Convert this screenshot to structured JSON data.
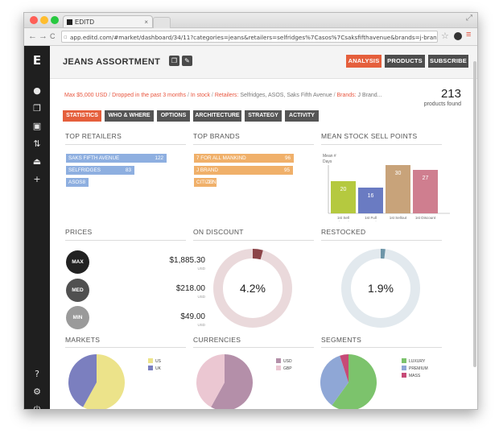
{
  "browser": {
    "tab_title": "EDITD",
    "url": "app.editd.com/#market/dashboard/34/11?categories=jeans&retailers=selfridges%7Casos%7Csaksfifthavenue&brands=j-brand%7C7-mankind%...",
    "nav": {
      "back": "←",
      "forward": "→",
      "reload": "C"
    }
  },
  "sidebar": {
    "logo": "E",
    "items": [
      {
        "name": "home-icon",
        "glyph": "●"
      },
      {
        "name": "copy-icon",
        "glyph": "❐"
      },
      {
        "name": "image-icon",
        "glyph": "▣"
      },
      {
        "name": "sort-icon",
        "glyph": "⇅"
      },
      {
        "name": "hanger-icon",
        "glyph": "⏏"
      },
      {
        "name": "plus-icon",
        "glyph": "+"
      }
    ],
    "bottom": [
      {
        "name": "help-icon",
        "glyph": "?"
      },
      {
        "name": "settings-icon",
        "glyph": "⚙"
      },
      {
        "name": "power-icon",
        "glyph": "⏻"
      }
    ]
  },
  "header": {
    "title": "JEANS ASSORTMENT",
    "buttons": {
      "analysis": "ANALYSIS",
      "products": "PRODUCTS",
      "subscribe": "SUBSCRIBE"
    }
  },
  "filters": {
    "price": "Max $5,000 USD",
    "dropped": "Dropped in the past 3 months",
    "stock": "In stock",
    "retailers_label": "Retailers:",
    "retailers_value": "Selfridges, ASOS, Saks Fifth Avenue",
    "brands_label": "Brands:",
    "brands_value": "J Brand..."
  },
  "summary": {
    "count": "213",
    "count_label": "products found"
  },
  "page_tabs": [
    "STATISTICS",
    "WHO & WHERE",
    "OPTIONS",
    "ARCHITECTURE",
    "STRATEGY",
    "ACTIVITY"
  ],
  "sections": {
    "top_retailers": "TOP RETAILERS",
    "top_brands": "TOP BRANDS",
    "mean_stock": "MEAN STOCK SELL POINTS",
    "prices": "PRICES",
    "on_discount": "ON DISCOUNT",
    "restocked": "RESTOCKED",
    "markets": "MARKETS",
    "currencies": "CURRENCIES",
    "segments": "SEGMENTS"
  },
  "top_retailers": [
    {
      "label": "SAKS FIFTH AVENUE",
      "value": "122",
      "n": 122
    },
    {
      "label": "SELFRIDGES",
      "value": "83",
      "n": 83
    },
    {
      "label": "ASOS",
      "value": "8",
      "n": 8
    }
  ],
  "top_brands": [
    {
      "label": "7 FOR ALL MANKIND",
      "value": "96",
      "n": 96
    },
    {
      "label": "J BRAND",
      "value": "95",
      "n": 95
    },
    {
      "label": "CITIZENS ...",
      "value": "22",
      "n": 22
    }
  ],
  "mean_stock": {
    "ylabel": "Mean # Days",
    "bars": [
      {
        "label": "1st Sell Through",
        "value": 20,
        "color": "#b5c93f"
      },
      {
        "label": "1st Full Restock",
        "value": 16,
        "color": "#6a7bc2"
      },
      {
        "label": "1st Sellout",
        "value": 30,
        "color": "#c8a37a"
      },
      {
        "label": "1st Discount",
        "value": 27,
        "color": "#cf7e8f"
      }
    ]
  },
  "prices": [
    {
      "label": "MAX",
      "value": "$1,885.30",
      "unit": "USD",
      "color": "#222222"
    },
    {
      "label": "MED",
      "value": "$218.00",
      "unit": "USD",
      "color": "#505050"
    },
    {
      "label": "MIN",
      "value": "$49.00",
      "unit": "USD",
      "color": "#9a9a9a"
    }
  ],
  "on_discount": {
    "value": "4.2%",
    "fraction": 0.042,
    "color": "#8b4448",
    "track": "#ead9db"
  },
  "restocked": {
    "value": "1.9%",
    "fraction": 0.019,
    "color": "#6d95a8",
    "track": "#e2e9ee"
  },
  "chart_data": [
    {
      "type": "bar",
      "title": "TOP RETAILERS",
      "categories": [
        "SAKS FIFTH AVENUE",
        "SELFRIDGES",
        "ASOS"
      ],
      "values": [
        122,
        83,
        8
      ]
    },
    {
      "type": "bar",
      "title": "TOP BRANDS",
      "categories": [
        "7 FOR ALL MANKIND",
        "J BRAND",
        "CITIZENS ..."
      ],
      "values": [
        96,
        95,
        22
      ]
    },
    {
      "type": "bar",
      "title": "MEAN STOCK SELL POINTS",
      "ylabel": "Mean # Days",
      "categories": [
        "1st Sell Through",
        "1st Full Restock",
        "1st Sellout",
        "1st Discount"
      ],
      "values": [
        20,
        16,
        30,
        27
      ]
    },
    {
      "type": "pie",
      "title": "ON DISCOUNT",
      "categories": [
        "On discount",
        "Other"
      ],
      "values": [
        4.2,
        95.8
      ]
    },
    {
      "type": "pie",
      "title": "RESTOCKED",
      "categories": [
        "Restocked",
        "Other"
      ],
      "values": [
        1.9,
        98.1
      ]
    },
    {
      "type": "pie",
      "title": "MARKETS",
      "categories": [
        "US",
        "UK"
      ],
      "values": [
        58,
        42
      ]
    },
    {
      "type": "pie",
      "title": "CURRENCIES",
      "categories": [
        "USD",
        "GBP"
      ],
      "values": [
        58,
        42
      ]
    },
    {
      "type": "pie",
      "title": "SEGMENTS",
      "categories": [
        "LUXURY",
        "PREMIUM",
        "MASS"
      ],
      "values": [
        60,
        35,
        5
      ]
    }
  ],
  "pies": {
    "markets": [
      {
        "label": "US",
        "value": 58,
        "color": "#ece38a"
      },
      {
        "label": "UK",
        "value": 42,
        "color": "#7b7fbf"
      }
    ],
    "currencies": [
      {
        "label": "USD",
        "value": 58,
        "color": "#b48fa9"
      },
      {
        "label": "GBP",
        "value": 42,
        "color": "#ebc7d2"
      }
    ],
    "segments": [
      {
        "label": "LUXURY",
        "value": 60,
        "color": "#7cc36c"
      },
      {
        "label": "PREMIUM",
        "value": 35,
        "color": "#8fa7d6"
      },
      {
        "label": "MASS",
        "value": 5,
        "color": "#c74a77"
      }
    ]
  },
  "colors": {
    "accent": "#e55f3c",
    "retailer_bar": "#8eafe0",
    "brand_bar": "#f0b06a"
  }
}
